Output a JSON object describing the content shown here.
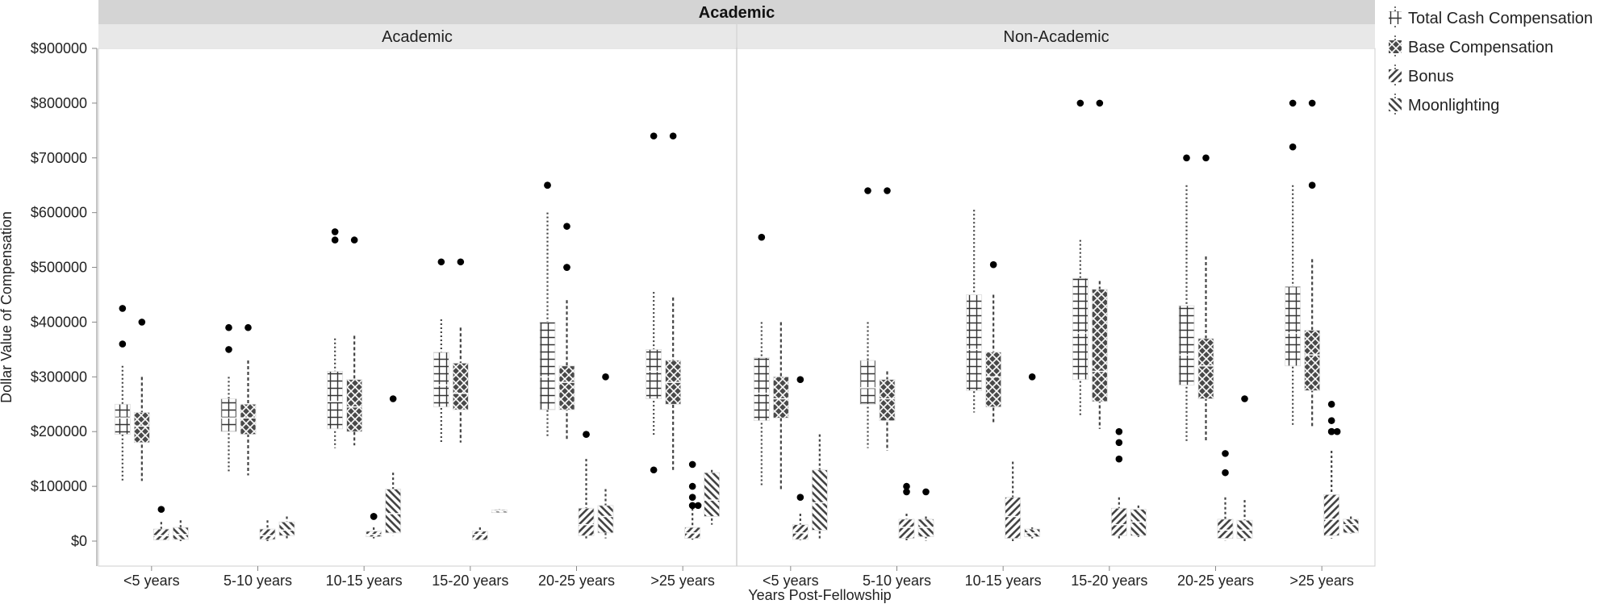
{
  "chart_data": {
    "type": "box",
    "facet_title": "Academic",
    "panels": [
      "Academic",
      "Non-Academic"
    ],
    "categories": [
      "<5 years",
      "5-10 years",
      "10-15 years",
      "15-20 years",
      "20-25 years",
      ">25 years"
    ],
    "xlabel": "Years Post-Fellowship",
    "ylabel": "Dollar Value of Compensation",
    "ylim": [
      0,
      900000
    ],
    "yticks": [
      0,
      100000,
      200000,
      300000,
      400000,
      500000,
      600000,
      700000,
      800000,
      900000
    ],
    "ytick_labels": [
      "$0",
      "$100000",
      "$200000",
      "$300000",
      "$400000",
      "$500000",
      "$600000",
      "$700000",
      "$800000",
      "$900000"
    ],
    "legend_position": "right",
    "series": [
      {
        "name": "Total Cash Compensation",
        "pattern": "grid"
      },
      {
        "name": "Base Compensation",
        "pattern": "crosshatch"
      },
      {
        "name": "Bonus",
        "pattern": "diagonal"
      },
      {
        "name": "Moonlighting",
        "pattern": "backdiagonal"
      }
    ],
    "data": {
      "Academic": {
        "<5 years": [
          {
            "series": "Total Cash Compensation",
            "min": 110000,
            "q1": 195000,
            "median": 225000,
            "q3": 250000,
            "max": 320000,
            "outliers": [
              360000,
              425000
            ]
          },
          {
            "series": "Base Compensation",
            "min": 110000,
            "q1": 180000,
            "median": 210000,
            "q3": 235000,
            "max": 300000,
            "outliers": [
              400000
            ]
          },
          {
            "series": "Bonus",
            "min": 0,
            "q1": 2000,
            "median": 10000,
            "q3": 22000,
            "max": 35000,
            "outliers": [
              58000
            ]
          },
          {
            "series": "Moonlighting",
            "min": 0,
            "q1": 3000,
            "median": 12000,
            "q3": 25000,
            "max": 38000,
            "outliers": []
          }
        ],
        "5-10 years": [
          {
            "series": "Total Cash Compensation",
            "min": 125000,
            "q1": 200000,
            "median": 225000,
            "q3": 260000,
            "max": 300000,
            "outliers": [
              350000,
              390000
            ]
          },
          {
            "series": "Base Compensation",
            "min": 120000,
            "q1": 195000,
            "median": 225000,
            "q3": 250000,
            "max": 330000,
            "outliers": [
              390000
            ]
          },
          {
            "series": "Bonus",
            "min": 0,
            "q1": 3000,
            "median": 10000,
            "q3": 22000,
            "max": 38000,
            "outliers": []
          },
          {
            "series": "Moonlighting",
            "min": 2000,
            "q1": 10000,
            "median": 20000,
            "q3": 35000,
            "max": 45000,
            "outliers": []
          }
        ],
        "10-15 years": [
          {
            "series": "Total Cash Compensation",
            "min": 170000,
            "q1": 205000,
            "median": 255000,
            "q3": 310000,
            "max": 370000,
            "outliers": [
              550000,
              565000
            ]
          },
          {
            "series": "Base Compensation",
            "min": 175000,
            "q1": 200000,
            "median": 245000,
            "q3": 295000,
            "max": 375000,
            "outliers": [
              550000
            ]
          },
          {
            "series": "Bonus",
            "min": 5000,
            "q1": 8000,
            "median": 12000,
            "q3": 18000,
            "max": 25000,
            "outliers": [
              45000,
              45000
            ]
          },
          {
            "series": "Moonlighting",
            "min": 10000,
            "q1": 15000,
            "median": 50000,
            "q3": 95000,
            "max": 125000,
            "outliers": [
              260000
            ]
          }
        ],
        "15-20 years": [
          {
            "series": "Total Cash Compensation",
            "min": 180000,
            "q1": 245000,
            "median": 285000,
            "q3": 345000,
            "max": 405000,
            "outliers": [
              510000
            ]
          },
          {
            "series": "Base Compensation",
            "min": 180000,
            "q1": 240000,
            "median": 270000,
            "q3": 325000,
            "max": 390000,
            "outliers": [
              510000
            ]
          },
          {
            "series": "Bonus",
            "min": 0,
            "q1": 2000,
            "median": 12000,
            "q3": 18000,
            "max": 25000,
            "outliers": []
          },
          {
            "series": "Moonlighting",
            "min": 50000,
            "q1": 52000,
            "median": 55000,
            "q3": 57000,
            "max": 58000,
            "outliers": []
          }
        ],
        "20-25 years": [
          {
            "series": "Total Cash Compensation",
            "min": 190000,
            "q1": 240000,
            "median": 300000,
            "q3": 400000,
            "max": 600000,
            "outliers": [
              650000,
              650000
            ]
          },
          {
            "series": "Base Compensation",
            "min": 185000,
            "q1": 240000,
            "median": 290000,
            "q3": 320000,
            "max": 440000,
            "outliers": [
              500000,
              500000,
              575000
            ]
          },
          {
            "series": "Bonus",
            "min": 5000,
            "q1": 10000,
            "median": 30000,
            "q3": 60000,
            "max": 150000,
            "outliers": [
              195000,
              195000
            ]
          },
          {
            "series": "Moonlighting",
            "min": 5000,
            "q1": 15000,
            "median": 45000,
            "q3": 65000,
            "max": 95000,
            "outliers": [
              300000
            ]
          }
        ],
        ">25 years": [
          {
            "series": "Total Cash Compensation",
            "min": 190000,
            "q1": 260000,
            "median": 310000,
            "q3": 350000,
            "max": 455000,
            "outliers": [
              130000,
              740000
            ]
          },
          {
            "series": "Base Compensation",
            "min": 130000,
            "q1": 250000,
            "median": 290000,
            "q3": 330000,
            "max": 445000,
            "outliers": [
              740000
            ]
          },
          {
            "series": "Bonus",
            "min": 0,
            "q1": 5000,
            "median": 15000,
            "q3": 25000,
            "max": 60000,
            "outliers": [
              65000,
              65000,
              65000,
              80000,
              100000,
              140000
            ]
          },
          {
            "series": "Moonlighting",
            "min": 30000,
            "q1": 45000,
            "median": 75000,
            "q3": 125000,
            "max": 130000,
            "outliers": []
          }
        ]
      },
      "Non-Academic": {
        "<5 years": [
          {
            "series": "Total Cash Compensation",
            "min": 100000,
            "q1": 220000,
            "median": 270000,
            "q3": 335000,
            "max": 400000,
            "outliers": [
              555000
            ]
          },
          {
            "series": "Base Compensation",
            "min": 95000,
            "q1": 225000,
            "median": 260000,
            "q3": 300000,
            "max": 400000,
            "outliers": []
          },
          {
            "series": "Bonus",
            "min": 0,
            "q1": 3000,
            "median": 15000,
            "q3": 30000,
            "max": 50000,
            "outliers": [
              80000,
              295000
            ]
          },
          {
            "series": "Moonlighting",
            "min": 5000,
            "q1": 20000,
            "median": 70000,
            "q3": 130000,
            "max": 195000,
            "outliers": []
          }
        ],
        "5-10 years": [
          {
            "series": "Total Cash Compensation",
            "min": 170000,
            "q1": 250000,
            "median": 280000,
            "q3": 330000,
            "max": 400000,
            "outliers": [
              640000
            ]
          },
          {
            "series": "Base Compensation",
            "min": 165000,
            "q1": 220000,
            "median": 260000,
            "q3": 295000,
            "max": 310000,
            "outliers": [
              640000
            ]
          },
          {
            "series": "Bonus",
            "min": 0,
            "q1": 5000,
            "median": 25000,
            "q3": 40000,
            "max": 50000,
            "outliers": [
              90000,
              100000
            ]
          },
          {
            "series": "Moonlighting",
            "min": 0,
            "q1": 8000,
            "median": 25000,
            "q3": 40000,
            "max": 45000,
            "outliers": [
              90000
            ]
          }
        ],
        "10-15 years": [
          {
            "series": "Total Cash Compensation",
            "min": 235000,
            "q1": 275000,
            "median": 350000,
            "q3": 450000,
            "max": 605000,
            "outliers": []
          },
          {
            "series": "Base Compensation",
            "min": 215000,
            "q1": 245000,
            "median": 300000,
            "q3": 345000,
            "max": 450000,
            "outliers": [
              505000
            ]
          },
          {
            "series": "Bonus",
            "min": 0,
            "q1": 5000,
            "median": 45000,
            "q3": 80000,
            "max": 145000,
            "outliers": []
          },
          {
            "series": "Moonlighting",
            "min": 5000,
            "q1": 8000,
            "median": 15000,
            "q3": 22000,
            "max": 25000,
            "outliers": [
              300000
            ]
          }
        ],
        "15-20 years": [
          {
            "series": "Total Cash Compensation",
            "min": 230000,
            "q1": 295000,
            "median": 380000,
            "q3": 480000,
            "max": 550000,
            "outliers": [
              800000
            ]
          },
          {
            "series": "Base Compensation",
            "min": 205000,
            "q1": 255000,
            "median": 310000,
            "q3": 460000,
            "max": 475000,
            "outliers": [
              800000
            ]
          },
          {
            "series": "Bonus",
            "min": 5000,
            "q1": 10000,
            "median": 30000,
            "q3": 60000,
            "max": 80000,
            "outliers": [
              150000,
              180000,
              200000
            ]
          },
          {
            "series": "Moonlighting",
            "min": 5000,
            "q1": 10000,
            "median": 35000,
            "q3": 58000,
            "max": 65000,
            "outliers": []
          }
        ],
        "20-25 years": [
          {
            "series": "Total Cash Compensation",
            "min": 180000,
            "q1": 285000,
            "median": 340000,
            "q3": 430000,
            "max": 650000,
            "outliers": [
              700000
            ]
          },
          {
            "series": "Base Compensation",
            "min": 180000,
            "q1": 260000,
            "median": 320000,
            "q3": 370000,
            "max": 520000,
            "outliers": [
              700000
            ]
          },
          {
            "series": "Bonus",
            "min": 0,
            "q1": 5000,
            "median": 20000,
            "q3": 40000,
            "max": 80000,
            "outliers": [
              125000,
              160000
            ]
          },
          {
            "series": "Moonlighting",
            "min": 0,
            "q1": 5000,
            "median": 20000,
            "q3": 38000,
            "max": 75000,
            "outliers": [
              260000
            ]
          }
        ],
        ">25 years": [
          {
            "series": "Total Cash Compensation",
            "min": 210000,
            "q1": 320000,
            "median": 380000,
            "q3": 465000,
            "max": 650000,
            "outliers": [
              720000,
              800000
            ]
          },
          {
            "series": "Base Compensation",
            "min": 210000,
            "q1": 275000,
            "median": 340000,
            "q3": 385000,
            "max": 515000,
            "outliers": [
              650000,
              800000
            ]
          },
          {
            "series": "Bonus",
            "min": 5000,
            "q1": 10000,
            "median": 40000,
            "q3": 85000,
            "max": 165000,
            "outliers": [
              200000,
              200000,
              200000,
              220000,
              250000
            ]
          },
          {
            "series": "Moonlighting",
            "min": 10000,
            "q1": 15000,
            "median": 30000,
            "q3": 40000,
            "max": 45000,
            "outliers": []
          }
        ]
      }
    }
  }
}
